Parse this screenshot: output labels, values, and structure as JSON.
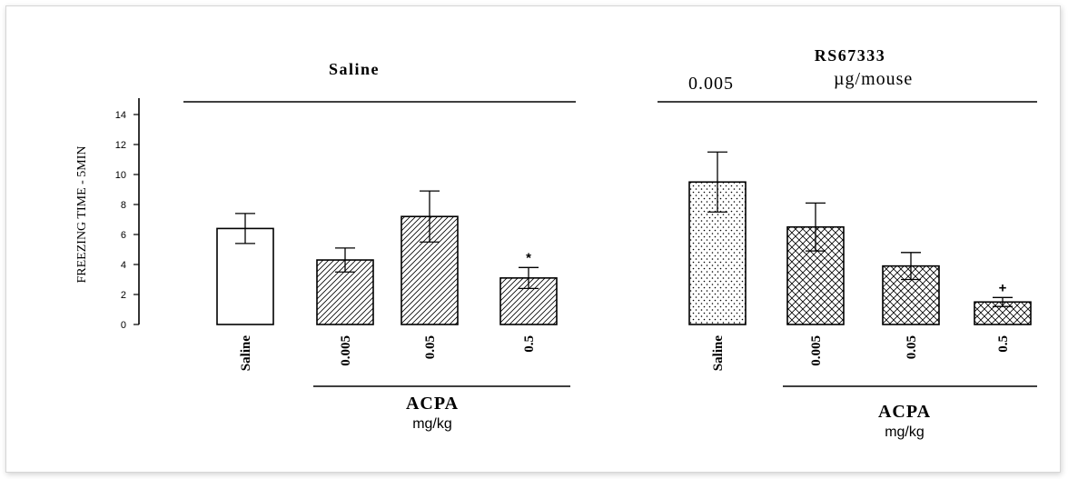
{
  "chart_data": {
    "type": "bar",
    "ylabel": "FREEZING TIME - 5MIN",
    "ylim": [
      0,
      14
    ],
    "yticks": [
      0,
      2,
      4,
      6,
      8,
      10,
      12,
      14
    ],
    "groups": [
      {
        "title": "Saline",
        "dose_label": "",
        "categories": [
          "Saline",
          "0.005",
          "0.05",
          "0.5"
        ],
        "values": [
          6.4,
          4.3,
          7.2,
          3.1
        ],
        "errors": [
          1.0,
          0.8,
          1.7,
          0.7
        ],
        "significance": [
          "",
          "",
          "",
          "*"
        ],
        "patterns": [
          "empty",
          "diag",
          "diag",
          "diag"
        ],
        "footer_label": "ACPA",
        "footer_unit": "mg/kg"
      },
      {
        "title": "RS67333",
        "dose_label": "0.005",
        "dose_unit": "µg/mouse",
        "categories": [
          "Saline",
          "0.005",
          "0.05",
          "0.5"
        ],
        "values": [
          9.5,
          6.5,
          3.9,
          1.5
        ],
        "errors": [
          2.0,
          1.6,
          0.9,
          0.3
        ],
        "significance": [
          "",
          "",
          "",
          "+"
        ],
        "patterns": [
          "dots",
          "cross",
          "cross",
          "cross"
        ],
        "footer_label": "ACPA",
        "footer_unit": "mg/kg"
      }
    ]
  }
}
